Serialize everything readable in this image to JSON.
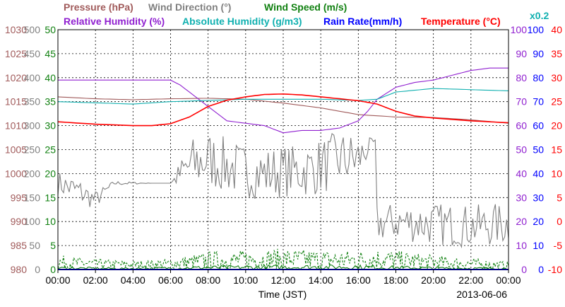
{
  "chart_data": {
    "type": "line",
    "date": "2013-06-06",
    "xlabel": "Time (JST)",
    "x_ticks": [
      "00:00",
      "02:00",
      "04:00",
      "06:00",
      "08:00",
      "10:00",
      "12:00",
      "14:00",
      "16:00",
      "18:00",
      "20:00",
      "22:00",
      "00:00"
    ],
    "grid": true,
    "legend": [
      {
        "name": "Pressure (hPa)",
        "color": "#a05a5a"
      },
      {
        "name": "Wind Direction (°)",
        "color": "#808080"
      },
      {
        "name": "Wind Speed (m/s)",
        "color": "#108010"
      },
      {
        "name": "Relative Humidity (%)",
        "color": "#9020d0"
      },
      {
        "name": "Absolute Humidity (g/m3)",
        "color": "#10b0b0"
      },
      {
        "name": "Rain Rate(mm/h)",
        "color": "#0000ff"
      },
      {
        "name": "Temperature (°C)",
        "color": "#ff0000"
      },
      {
        "name": "x0.2",
        "color": "#10b0b0"
      }
    ],
    "axes": {
      "pressure": {
        "label": "Pressure (hPa)",
        "range": [
          980,
          1030
        ],
        "ticks": [
          "1030",
          "1025",
          "1020",
          "1015",
          "1010",
          "1005",
          "1000",
          "995",
          "990",
          "985",
          "980"
        ],
        "color": "#a05a5a"
      },
      "wind_direction": {
        "label": "Wind Direction (°)",
        "range": [
          0,
          500
        ],
        "ticks": [
          "500",
          "450",
          "400",
          "350",
          "300",
          "250",
          "200",
          "150",
          "100",
          "50",
          "0"
        ],
        "color": "#808080"
      },
      "wind_speed": {
        "label": "Wind Speed (m/s)",
        "range": [
          0,
          50
        ],
        "ticks": [
          "50",
          "45",
          "40",
          "35",
          "30",
          "25",
          "20",
          "15",
          "10",
          "5",
          "0"
        ],
        "color": "#108010"
      },
      "relative_humidity": {
        "label": "Relative Humidity (%)",
        "range": [
          0,
          100
        ],
        "ticks": [
          "100",
          "90",
          "80",
          "70",
          "60",
          "50",
          "40",
          "30",
          "20",
          "10",
          "0"
        ],
        "color": "#9020d0"
      },
      "rain_rate": {
        "label": "Rain Rate(mm/h)",
        "range": [
          0,
          100
        ],
        "ticks": [
          "100",
          "90",
          "80",
          "70",
          "60",
          "50",
          "40",
          "30",
          "20",
          "10",
          "0"
        ],
        "color": "#0000ff"
      },
      "temperature": {
        "label": "Temperature (°C)",
        "range": [
          -10,
          40
        ],
        "ticks": [
          "40",
          "35",
          "30",
          "25",
          "20",
          "15",
          "10",
          "5",
          "0",
          "-5",
          "-10"
        ],
        "color": "#ff0000"
      }
    },
    "series": [
      {
        "name": "Pressure (hPa)",
        "axis": "pressure",
        "color": "#a05a5a",
        "x": [
          0,
          2,
          4,
          6,
          8,
          10,
          12,
          14,
          16,
          18,
          20,
          22,
          24
        ],
        "y": [
          1016.0,
          1015.6,
          1015.4,
          1015.6,
          1015.7,
          1015.5,
          1014.7,
          1013.7,
          1012.3,
          1011.8,
          1011.7,
          1011.2,
          1010.5
        ]
      },
      {
        "name": "Wind Direction (°)",
        "axis": "wind_direction",
        "color": "#808080",
        "style": "noisy",
        "x": [
          0,
          1,
          2,
          3,
          5,
          6,
          7,
          8,
          9,
          10,
          11,
          12,
          13,
          14,
          15,
          16,
          16.9,
          17,
          18,
          20,
          22,
          24
        ],
        "y": [
          180,
          165,
          145,
          180,
          180,
          180,
          215,
          230,
          215,
          205,
          200,
          205,
          205,
          215,
          230,
          230,
          270,
          95,
          100,
          95,
          90,
          95
        ],
        "noise": [
          25,
          30,
          20,
          5,
          0,
          0,
          60,
          60,
          60,
          55,
          55,
          55,
          55,
          60,
          60,
          55,
          0,
          40,
          40,
          45,
          45,
          45
        ]
      },
      {
        "name": "Wind Speed (m/s)",
        "axis": "wind_speed",
        "color": "#108010",
        "style": "noisy-dashed",
        "x": [
          0,
          2,
          4,
          6,
          8,
          10,
          12,
          14,
          16,
          17,
          18,
          20,
          22,
          24
        ],
        "y": [
          1.5,
          1.2,
          1.0,
          1.2,
          1.8,
          2.0,
          2.2,
          2.0,
          2.0,
          2.2,
          2.0,
          1.5,
          1.2,
          0.8
        ],
        "noise": [
          1.5,
          1.0,
          0.8,
          1.0,
          2.0,
          2.0,
          2.2,
          2.0,
          2.0,
          2.2,
          2.0,
          1.5,
          1.2,
          0.8
        ]
      },
      {
        "name": "Wind Speed (m/s)",
        "axis": "wind_speed",
        "color": "#108010",
        "style": "noisy",
        "x": [
          0,
          4,
          8,
          12,
          16,
          20,
          24
        ],
        "y": [
          0.3,
          0.2,
          0.4,
          0.5,
          0.5,
          0.3,
          0.2
        ],
        "noise": [
          0.3,
          0.2,
          0.4,
          0.5,
          0.5,
          0.3,
          0.2
        ]
      },
      {
        "name": "Relative Humidity (%)",
        "axis": "relative_humidity",
        "color": "#9020d0",
        "x": [
          0,
          2,
          4,
          5,
          6,
          6.5,
          7,
          8,
          9,
          10,
          11,
          12,
          13,
          14,
          15,
          16,
          16.5,
          17,
          18,
          19,
          20,
          21,
          22,
          23,
          24
        ],
        "y": [
          79,
          79,
          79,
          79,
          79,
          77,
          74,
          68,
          62,
          61,
          60,
          57,
          58,
          58,
          59,
          62,
          66,
          71,
          76,
          78,
          79,
          81,
          83,
          84,
          84
        ]
      },
      {
        "name": "Absolute Humidity (g/m3)",
        "axis": "relative_humidity",
        "color": "#10b0b0",
        "x": [
          0,
          2,
          4,
          6,
          8,
          10,
          12,
          14,
          16,
          17,
          18,
          20,
          22,
          24
        ],
        "y": [
          70,
          69.5,
          69,
          70,
          70.5,
          71,
          71,
          71,
          70.5,
          71,
          74,
          75.5,
          75,
          74.5
        ]
      },
      {
        "name": "Temperature (°C)",
        "axis": "temperature",
        "color": "#ff0000",
        "x": [
          0,
          2,
          4,
          5,
          6,
          7,
          8,
          9,
          10,
          11,
          12,
          13,
          14,
          15,
          16,
          17,
          18,
          19,
          20,
          21,
          22,
          23,
          24
        ],
        "y": [
          20.8,
          20.3,
          20.0,
          20.0,
          20.4,
          21.8,
          24.0,
          25.3,
          26.0,
          26.5,
          26.6,
          26.4,
          26.0,
          25.6,
          25.2,
          24.5,
          23.0,
          22.0,
          21.6,
          21.3,
          21.0,
          20.8,
          20.6
        ]
      },
      {
        "name": "Rain Rate(mm/h)",
        "axis": "rain_rate",
        "color": "#0000ff",
        "x": [
          0,
          24
        ],
        "y": [
          0,
          0
        ]
      }
    ]
  }
}
